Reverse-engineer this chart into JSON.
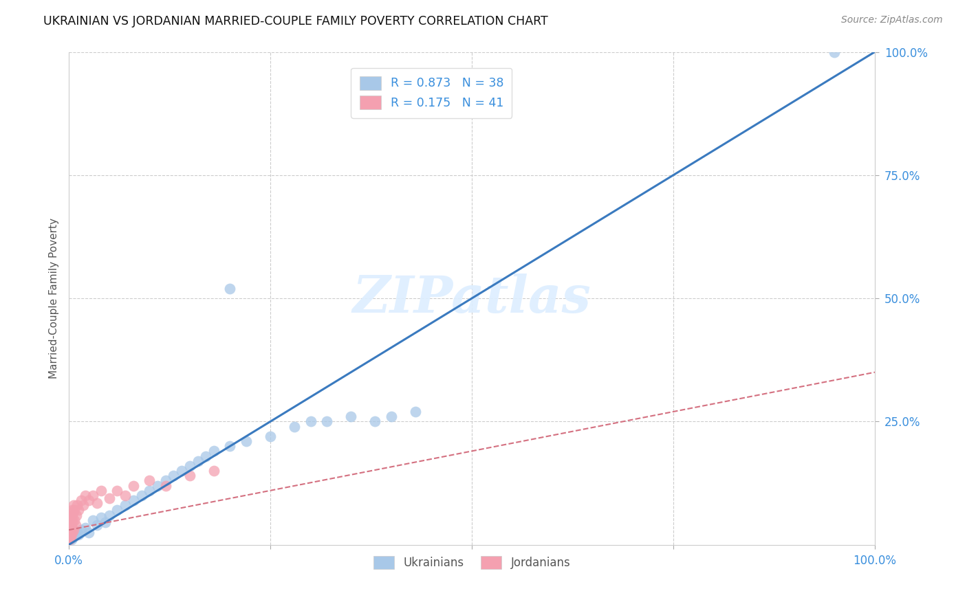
{
  "title": "UKRAINIAN VS JORDANIAN MARRIED-COUPLE FAMILY POVERTY CORRELATION CHART",
  "source": "Source: ZipAtlas.com",
  "ylabel": "Married-Couple Family Poverty",
  "xlim": [
    0,
    100
  ],
  "ylim": [
    0,
    100
  ],
  "blue_line_color": "#3a7abf",
  "pink_line_color": "#d47080",
  "grid_color": "#cccccc",
  "background_color": "#ffffff",
  "tick_color": "#3a8fdd",
  "watermark": "ZIPatlas",
  "ukr_x": [
    0.3,
    0.5,
    0.8,
    1.0,
    1.2,
    1.5,
    2.0,
    2.5,
    3.0,
    3.5,
    4.0,
    4.5,
    5.0,
    6.0,
    7.0,
    8.0,
    9.0,
    10.0,
    11.0,
    12.0,
    13.0,
    14.0,
    15.0,
    16.0,
    17.0,
    18.0,
    20.0,
    22.0,
    25.0,
    28.0,
    30.0,
    32.0,
    35.0,
    38.0,
    40.0,
    43.0,
    20.0,
    95.0
  ],
  "ukr_y": [
    1.0,
    1.5,
    2.0,
    2.5,
    2.0,
    3.0,
    3.5,
    2.5,
    5.0,
    4.0,
    5.5,
    4.5,
    6.0,
    7.0,
    8.0,
    9.0,
    10.0,
    11.0,
    12.0,
    13.0,
    14.0,
    15.0,
    16.0,
    17.0,
    18.0,
    19.0,
    20.0,
    21.0,
    22.0,
    24.0,
    25.0,
    25.0,
    26.0,
    25.0,
    26.0,
    27.0,
    52.0,
    100.0
  ],
  "jor_x": [
    0.05,
    0.08,
    0.1,
    0.12,
    0.15,
    0.18,
    0.2,
    0.22,
    0.25,
    0.28,
    0.3,
    0.32,
    0.35,
    0.38,
    0.4,
    0.42,
    0.45,
    0.5,
    0.55,
    0.6,
    0.65,
    0.7,
    0.8,
    0.9,
    1.0,
    1.2,
    1.5,
    1.8,
    2.0,
    2.5,
    3.0,
    3.5,
    4.0,
    5.0,
    6.0,
    7.0,
    8.0,
    10.0,
    12.0,
    15.0,
    18.0
  ],
  "jor_y": [
    1.5,
    2.0,
    1.0,
    3.0,
    2.5,
    4.0,
    3.0,
    1.5,
    5.0,
    2.0,
    6.0,
    4.0,
    3.5,
    2.5,
    7.0,
    4.5,
    5.5,
    6.5,
    3.0,
    8.0,
    5.0,
    7.0,
    4.0,
    6.0,
    8.0,
    7.0,
    9.0,
    8.0,
    10.0,
    9.0,
    10.0,
    8.5,
    11.0,
    9.5,
    11.0,
    10.0,
    12.0,
    13.0,
    12.0,
    14.0,
    15.0
  ],
  "blue_line_x0": 0,
  "blue_line_y0": 0,
  "blue_line_x1": 100,
  "blue_line_y1": 100,
  "pink_line_x0": 0,
  "pink_line_y0": 3,
  "pink_line_x1": 100,
  "pink_line_y1": 35
}
